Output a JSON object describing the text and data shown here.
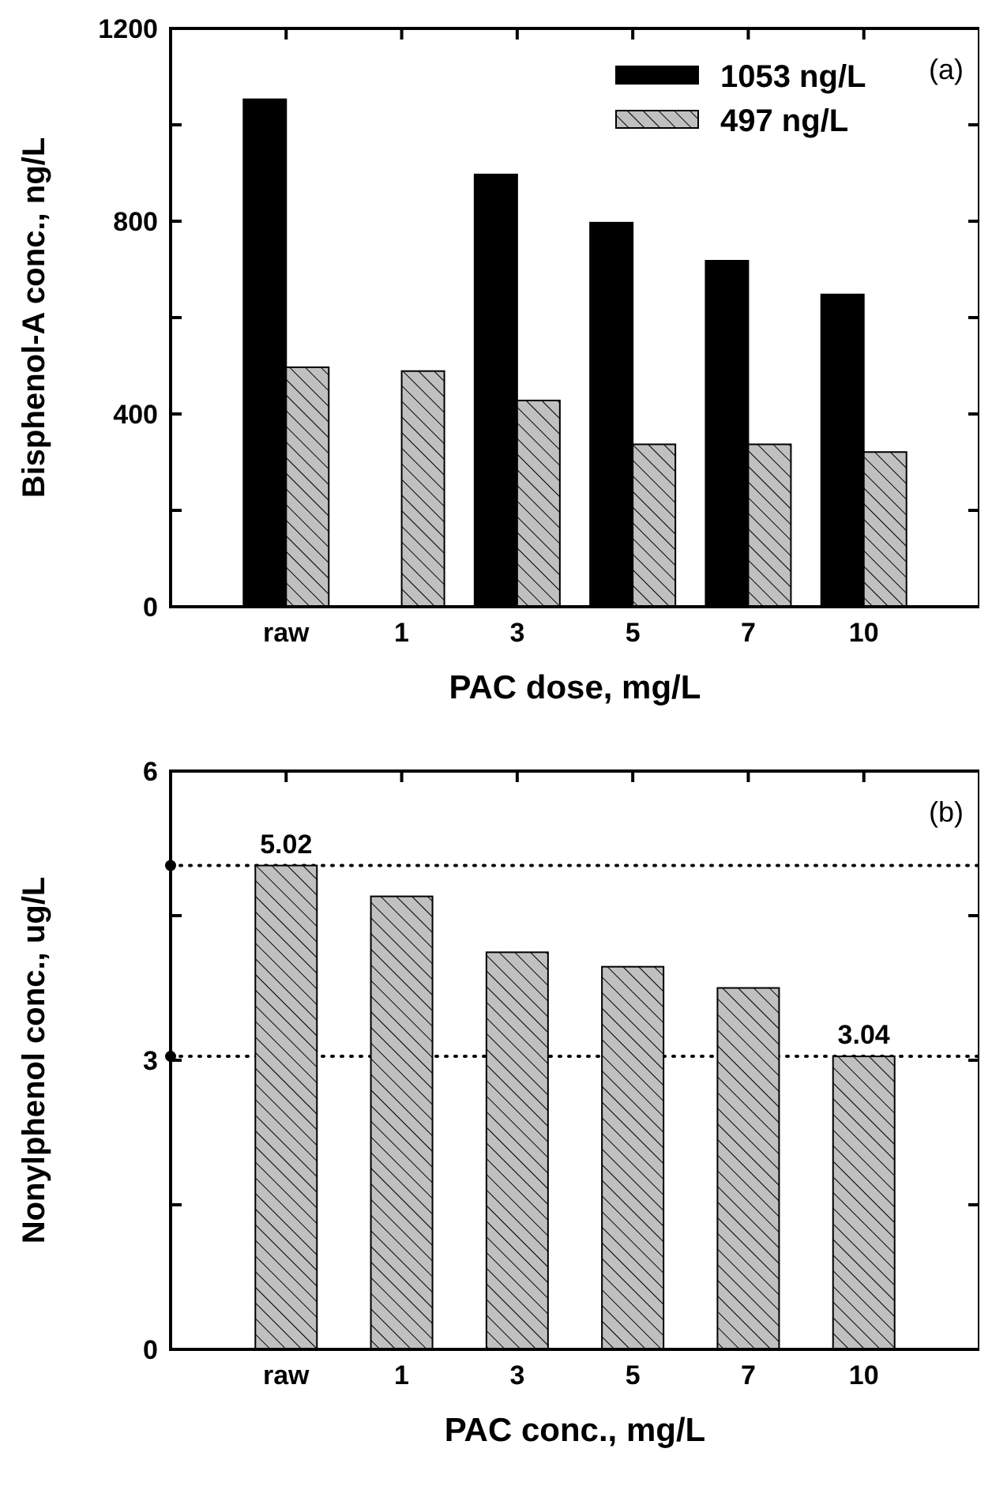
{
  "chart_data": [
    {
      "type": "bar",
      "xlabel": "PAC dose, mg/L",
      "ylabel": "Bisphenol-A conc., ng/L",
      "categories": [
        "raw",
        "1",
        "3",
        "5",
        "7",
        "10"
      ],
      "series": [
        {
          "name": "1053 ng/L",
          "color": "#000000",
          "values": [
            1053,
            null,
            897,
            797,
            718,
            648
          ]
        },
        {
          "name": "497 ng/L",
          "color": "#c0c0c0",
          "values": [
            497,
            489,
            428,
            337,
            337,
            321
          ]
        }
      ],
      "ylim": [
        0,
        1200
      ],
      "yticks": [
        0,
        {
          "value": 200,
          "label": null
        },
        400,
        {
          "value": 600,
          "label": null
        },
        800,
        {
          "value": 1000,
          "label": null
        },
        1200
      ],
      "legend": "top right",
      "annotations": [
        "(a)"
      ]
    },
    {
      "type": "bar",
      "xlabel": "PAC conc., mg/L",
      "ylabel": "Nonylphenol conc., ug/L",
      "categories": [
        "raw",
        "1",
        "3",
        "5",
        "7",
        "10"
      ],
      "series": [
        {
          "color": "#c0c0c0",
          "values": [
            5.02,
            4.7,
            4.12,
            3.97,
            3.75,
            3.04
          ],
          "value_labels": [
            "5.02",
            null,
            null,
            null,
            null,
            "3.04"
          ]
        }
      ],
      "ylim": [
        0,
        6
      ],
      "yticks": [
        0,
        {
          "value": 1.5,
          "label": null
        },
        3,
        {
          "value": 4.5,
          "label": null
        },
        6
      ],
      "ref_lines": [
        {
          "axis": "y",
          "value": 5.02,
          "line_style": "dotted"
        },
        {
          "axis": "y",
          "value": 3.04,
          "line_style": "dotted"
        }
      ],
      "legend": false,
      "annotations": [
        "(b)"
      ]
    }
  ]
}
